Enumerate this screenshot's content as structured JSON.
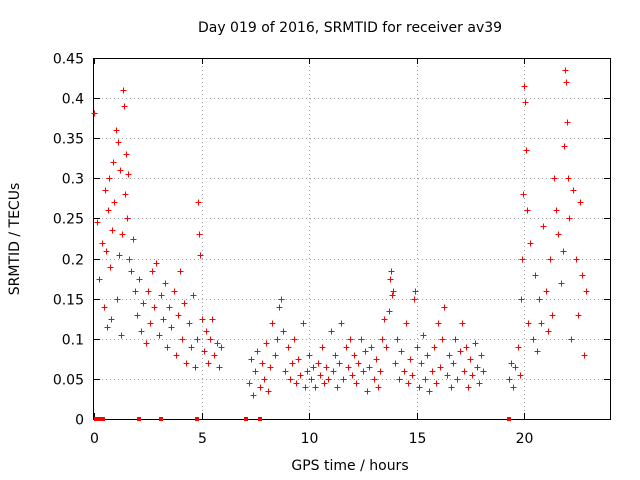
{
  "colors": {
    "series": "#ff0000",
    "grid": "#a0a0a0",
    "axis": "#000000",
    "background": "#ffffff"
  },
  "chart_data": {
    "type": "scatter",
    "title": "Day 019 of 2016, SRMTID for receiver av39",
    "xlabel": "GPS time / hours",
    "ylabel": "SRMTID / TECUs",
    "xlim": [
      0,
      24
    ],
    "ylim": [
      0,
      0.45
    ],
    "grid": true,
    "marker": "plus",
    "xticks": [
      {
        "value": 0,
        "label": "0"
      },
      {
        "value": 5,
        "label": "5"
      },
      {
        "value": 10,
        "label": "10"
      },
      {
        "value": 15,
        "label": "15"
      },
      {
        "value": 20,
        "label": "20"
      }
    ],
    "yticks": [
      {
        "value": 0,
        "label": "0"
      },
      {
        "value": 0.05,
        "label": "0.05"
      },
      {
        "value": 0.1,
        "label": "0.1"
      },
      {
        "value": 0.15,
        "label": "0.15"
      },
      {
        "value": 0.2,
        "label": "0.2"
      },
      {
        "value": 0.25,
        "label": "0.25"
      },
      {
        "value": 0.3,
        "label": "0.3"
      },
      {
        "value": 0.35,
        "label": "0.35"
      },
      {
        "value": 0.4,
        "label": "0.4"
      },
      {
        "value": 0.45,
        "label": "0.45"
      }
    ],
    "series": [
      {
        "name": "SRMTID",
        "points": [
          [
            0.0,
            0.382
          ],
          [
            0.15,
            0.245
          ],
          [
            0.25,
            0.175
          ],
          [
            0.35,
            0.22
          ],
          [
            0.45,
            0.14
          ],
          [
            0.5,
            0.285
          ],
          [
            0.55,
            0.21
          ],
          [
            0.6,
            0.115
          ],
          [
            0.65,
            0.26
          ],
          [
            0.7,
            0.3
          ],
          [
            0.75,
            0.19
          ],
          [
            0.8,
            0.125
          ],
          [
            0.85,
            0.235
          ],
          [
            0.9,
            0.32
          ],
          [
            0.95,
            0.27
          ],
          [
            1.0,
            0.36
          ],
          [
            1.05,
            0.15
          ],
          [
            1.1,
            0.345
          ],
          [
            1.15,
            0.205
          ],
          [
            1.2,
            0.31
          ],
          [
            1.25,
            0.105
          ],
          [
            1.3,
            0.23
          ],
          [
            1.35,
            0.41
          ],
          [
            1.4,
            0.39
          ],
          [
            1.45,
            0.28
          ],
          [
            1.5,
            0.33
          ],
          [
            1.55,
            0.25
          ],
          [
            1.6,
            0.305
          ],
          [
            1.65,
            0.2
          ],
          [
            1.7,
            0.185
          ],
          [
            1.8,
            0.225
          ],
          [
            1.9,
            0.16
          ],
          [
            2.0,
            0.13
          ],
          [
            2.1,
            0.175
          ],
          [
            2.2,
            0.11
          ],
          [
            2.3,
            0.145
          ],
          [
            2.4,
            0.095
          ],
          [
            2.5,
            0.16
          ],
          [
            2.6,
            0.12
          ],
          [
            2.7,
            0.185
          ],
          [
            2.8,
            0.14
          ],
          [
            2.9,
            0.195
          ],
          [
            3.0,
            0.105
          ],
          [
            3.1,
            0.155
          ],
          [
            3.2,
            0.125
          ],
          [
            3.3,
            0.17
          ],
          [
            3.4,
            0.09
          ],
          [
            3.5,
            0.14
          ],
          [
            3.6,
            0.115
          ],
          [
            3.7,
            0.16
          ],
          [
            3.8,
            0.08
          ],
          [
            3.9,
            0.13
          ],
          [
            4.0,
            0.185
          ],
          [
            4.1,
            0.1
          ],
          [
            4.2,
            0.145
          ],
          [
            4.3,
            0.07
          ],
          [
            4.4,
            0.12
          ],
          [
            4.5,
            0.09
          ],
          [
            4.6,
            0.155
          ],
          [
            4.7,
            0.065
          ],
          [
            4.8,
            0.1
          ],
          [
            4.85,
            0.27
          ],
          [
            4.9,
            0.23
          ],
          [
            4.95,
            0.205
          ],
          [
            5.0,
            0.125
          ],
          [
            5.1,
            0.085
          ],
          [
            5.2,
            0.11
          ],
          [
            5.3,
            0.07
          ],
          [
            5.4,
            0.1
          ],
          [
            5.5,
            0.125
          ],
          [
            5.6,
            0.08
          ],
          [
            5.7,
            0.095
          ],
          [
            5.8,
            0.065
          ],
          [
            5.9,
            0.09
          ],
          [
            7.2,
            0.045
          ],
          [
            7.3,
            0.075
          ],
          [
            7.4,
            0.03
          ],
          [
            7.5,
            0.06
          ],
          [
            7.6,
            0.085
          ],
          [
            7.7,
            0.04
          ],
          [
            7.8,
            0.07
          ],
          [
            7.9,
            0.05
          ],
          [
            8.0,
            0.095
          ],
          [
            8.1,
            0.035
          ],
          [
            8.2,
            0.065
          ],
          [
            8.3,
            0.12
          ],
          [
            8.4,
            0.08
          ],
          [
            8.5,
            0.1
          ],
          [
            8.6,
            0.14
          ],
          [
            8.7,
            0.15
          ],
          [
            8.8,
            0.11
          ],
          [
            8.9,
            0.06
          ],
          [
            9.0,
            0.09
          ],
          [
            9.1,
            0.05
          ],
          [
            9.2,
            0.07
          ],
          [
            9.3,
            0.1
          ],
          [
            9.4,
            0.045
          ],
          [
            9.5,
            0.075
          ],
          [
            9.6,
            0.055
          ],
          [
            9.7,
            0.12
          ],
          [
            9.8,
            0.04
          ],
          [
            9.9,
            0.06
          ],
          [
            10.0,
            0.08
          ],
          [
            10.1,
            0.05
          ],
          [
            10.2,
            0.065
          ],
          [
            10.3,
            0.04
          ],
          [
            10.4,
            0.07
          ],
          [
            10.5,
            0.055
          ],
          [
            10.6,
            0.09
          ],
          [
            10.7,
            0.045
          ],
          [
            10.8,
            0.065
          ],
          [
            10.9,
            0.05
          ],
          [
            11.0,
            0.11
          ],
          [
            11.1,
            0.06
          ],
          [
            11.2,
            0.08
          ],
          [
            11.3,
            0.04
          ],
          [
            11.4,
            0.07
          ],
          [
            11.5,
            0.12
          ],
          [
            11.6,
            0.05
          ],
          [
            11.7,
            0.09
          ],
          [
            11.8,
            0.065
          ],
          [
            11.9,
            0.1
          ],
          [
            12.0,
            0.055
          ],
          [
            12.1,
            0.08
          ],
          [
            12.2,
            0.045
          ],
          [
            12.3,
            0.07
          ],
          [
            12.4,
            0.1
          ],
          [
            12.5,
            0.06
          ],
          [
            12.6,
            0.085
          ],
          [
            12.7,
            0.035
          ],
          [
            12.8,
            0.065
          ],
          [
            12.9,
            0.09
          ],
          [
            13.0,
            0.05
          ],
          [
            13.1,
            0.075
          ],
          [
            13.2,
            0.04
          ],
          [
            13.3,
            0.06
          ],
          [
            13.4,
            0.1
          ],
          [
            13.5,
            0.125
          ],
          [
            13.6,
            0.09
          ],
          [
            13.7,
            0.135
          ],
          [
            13.75,
            0.175
          ],
          [
            13.8,
            0.185
          ],
          [
            13.85,
            0.155
          ],
          [
            13.9,
            0.16
          ],
          [
            14.0,
            0.07
          ],
          [
            14.1,
            0.1
          ],
          [
            14.2,
            0.05
          ],
          [
            14.3,
            0.085
          ],
          [
            14.4,
            0.06
          ],
          [
            14.5,
            0.12
          ],
          [
            14.6,
            0.045
          ],
          [
            14.7,
            0.075
          ],
          [
            14.8,
            0.055
          ],
          [
            14.9,
            0.15
          ],
          [
            14.95,
            0.16
          ],
          [
            15.0,
            0.09
          ],
          [
            15.1,
            0.04
          ],
          [
            15.2,
            0.07
          ],
          [
            15.3,
            0.105
          ],
          [
            15.4,
            0.05
          ],
          [
            15.5,
            0.08
          ],
          [
            15.6,
            0.035
          ],
          [
            15.7,
            0.06
          ],
          [
            15.8,
            0.09
          ],
          [
            15.9,
            0.045
          ],
          [
            16.0,
            0.12
          ],
          [
            16.1,
            0.065
          ],
          [
            16.2,
            0.1
          ],
          [
            16.3,
            0.14
          ],
          [
            16.4,
            0.055
          ],
          [
            16.5,
            0.08
          ],
          [
            16.6,
            0.04
          ],
          [
            16.7,
            0.07
          ],
          [
            16.8,
            0.1
          ],
          [
            16.9,
            0.05
          ],
          [
            17.0,
            0.085
          ],
          [
            17.1,
            0.12
          ],
          [
            17.2,
            0.06
          ],
          [
            17.3,
            0.09
          ],
          [
            17.4,
            0.04
          ],
          [
            17.5,
            0.075
          ],
          [
            17.6,
            0.055
          ],
          [
            17.7,
            0.095
          ],
          [
            17.8,
            0.065
          ],
          [
            17.9,
            0.045
          ],
          [
            18.0,
            0.08
          ],
          [
            18.1,
            0.06
          ],
          [
            19.3,
            0.05
          ],
          [
            19.4,
            0.07
          ],
          [
            19.5,
            0.04
          ],
          [
            19.6,
            0.065
          ],
          [
            19.7,
            0.09
          ],
          [
            19.8,
            0.055
          ],
          [
            19.85,
            0.15
          ],
          [
            19.9,
            0.2
          ],
          [
            19.95,
            0.28
          ],
          [
            20.0,
            0.415
          ],
          [
            20.05,
            0.395
          ],
          [
            20.1,
            0.335
          ],
          [
            20.15,
            0.26
          ],
          [
            20.2,
            0.12
          ],
          [
            20.3,
            0.22
          ],
          [
            20.4,
            0.1
          ],
          [
            20.5,
            0.18
          ],
          [
            20.6,
            0.085
          ],
          [
            20.7,
            0.15
          ],
          [
            20.8,
            0.12
          ],
          [
            20.9,
            0.24
          ],
          [
            21.0,
            0.16
          ],
          [
            21.1,
            0.11
          ],
          [
            21.2,
            0.2
          ],
          [
            21.3,
            0.13
          ],
          [
            21.4,
            0.3
          ],
          [
            21.5,
            0.26
          ],
          [
            21.6,
            0.23
          ],
          [
            21.7,
            0.17
          ],
          [
            21.8,
            0.21
          ],
          [
            21.85,
            0.34
          ],
          [
            21.9,
            0.435
          ],
          [
            21.95,
            0.42
          ],
          [
            22.0,
            0.37
          ],
          [
            22.05,
            0.3
          ],
          [
            22.1,
            0.25
          ],
          [
            22.2,
            0.1
          ],
          [
            22.3,
            0.285
          ],
          [
            22.4,
            0.2
          ],
          [
            22.5,
            0.13
          ],
          [
            22.6,
            0.27
          ],
          [
            22.7,
            0.18
          ],
          [
            22.8,
            0.08
          ],
          [
            22.9,
            0.16
          ]
        ]
      }
    ],
    "zero_points_x": [
      0.1,
      0.15,
      0.2,
      0.25,
      0.3,
      0.35,
      0.4,
      2.1,
      3.1,
      4.8,
      7.05,
      7.7,
      19.3
    ]
  }
}
